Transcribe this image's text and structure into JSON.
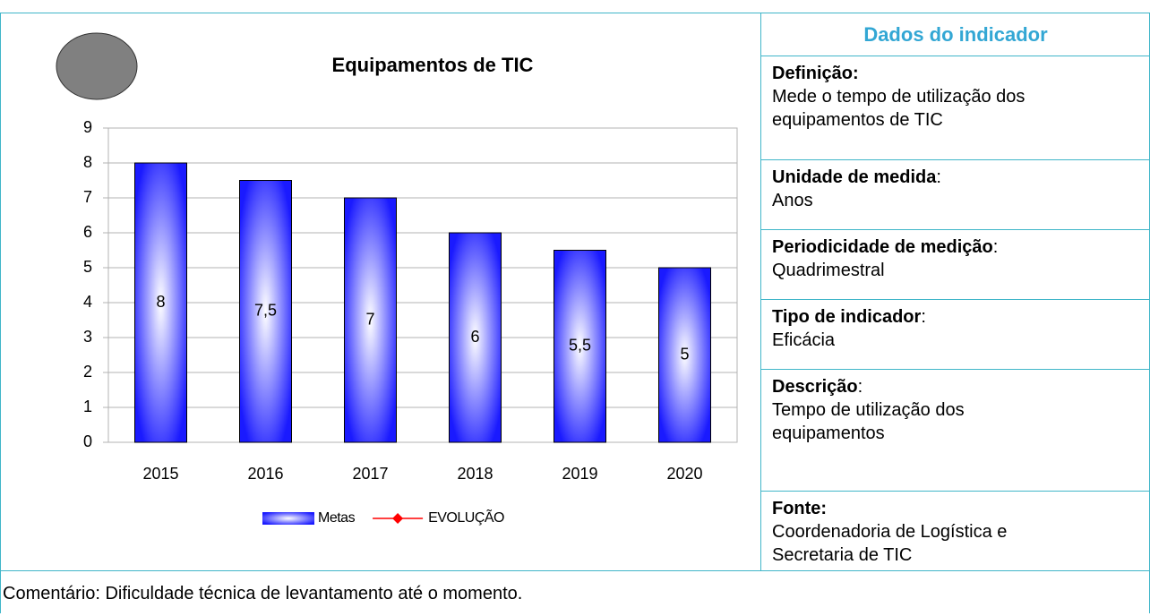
{
  "chart_data": {
    "type": "bar",
    "title": "Equipamentos de TIC",
    "categories": [
      "2015",
      "2016",
      "2017",
      "2018",
      "2019",
      "2020"
    ],
    "series": [
      {
        "name": "Metas",
        "color": "#1a1aff",
        "values": [
          8,
          7.5,
          7,
          6,
          5.5,
          5
        ],
        "value_labels": [
          "8",
          "7,5",
          "7",
          "6",
          "5,5",
          "5"
        ]
      },
      {
        "name": "EVOLUÇÃO",
        "color": "#ff0000",
        "type": "line",
        "values": [
          null,
          null,
          null,
          null,
          null,
          null
        ]
      }
    ],
    "ylim": [
      0,
      9
    ],
    "yticks": [
      0,
      1,
      2,
      3,
      4,
      5,
      6,
      7,
      8,
      9
    ],
    "grid": true,
    "legend": "bottom"
  },
  "panel": {
    "title": "Dados do indicador",
    "items": [
      {
        "label": "Definição:",
        "lines": [
          "Mede o tempo de utilização dos",
          "equipamentos de TIC"
        ]
      },
      {
        "label": "Unidade de medida",
        "punct": ":",
        "lines": [
          "Anos"
        ]
      },
      {
        "label": "Periodicidade de medição",
        "punct": ":",
        "lines": [
          "Quadrimestral"
        ]
      },
      {
        "label": "Tipo de indicador",
        "punct": ":",
        "lines": [
          "Eficácia"
        ]
      },
      {
        "label": "Descrição",
        "punct": ":",
        "lines": [
          "Tempo de utilização dos",
          "equipamentos"
        ]
      },
      {
        "label": "Fonte:",
        "lines": [
          "Coordenadoria de Logística e",
          "Secretaria de TIC"
        ]
      }
    ]
  },
  "comment": "Comentário: Dificuldade técnica de levantamento até o momento."
}
